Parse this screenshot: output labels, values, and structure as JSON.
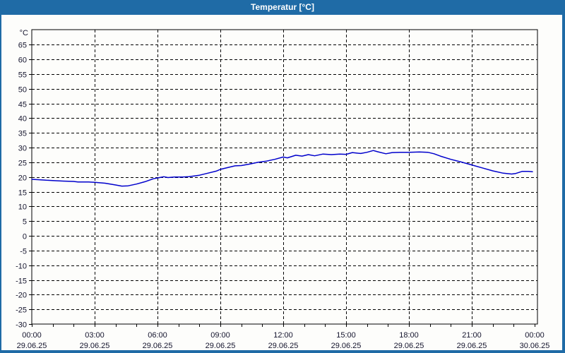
{
  "window": {
    "title": "Temperatur [°C]",
    "titlebar_color": "#1f6ba6",
    "frame_color": "#1f6ba6",
    "content_background": "#fdfdfb"
  },
  "chart_data": {
    "type": "line",
    "title": "Temperatur [°C]",
    "ylabel": "°C",
    "ylim": [
      -30,
      70.1
    ],
    "y_ticks": [
      -30,
      -25,
      -20,
      -15,
      -10,
      -5,
      0,
      5,
      10,
      15,
      20,
      25,
      30,
      35,
      40,
      45,
      50,
      55,
      60,
      65
    ],
    "grid": "dashed",
    "grid_color": "#000000",
    "axis_color": "#000000",
    "plot_background": "#fdfdfb",
    "x_axis": {
      "hours_span": 24,
      "minor_tick_every_hours": 1,
      "gridline_hours": [
        3,
        6,
        9,
        12,
        15,
        18,
        21
      ],
      "major_ticks": [
        {
          "hour": 0,
          "time": "00:00",
          "date": "29.06.25"
        },
        {
          "hour": 3,
          "time": "03:00",
          "date": "29.06.25"
        },
        {
          "hour": 6,
          "time": "06:00",
          "date": "29.06.25"
        },
        {
          "hour": 9,
          "time": "09:00",
          "date": "29.06.25"
        },
        {
          "hour": 12,
          "time": "12:00",
          "date": "29.06.25"
        },
        {
          "hour": 15,
          "time": "15:00",
          "date": "29.06.25"
        },
        {
          "hour": 18,
          "time": "18:00",
          "date": "29.06.25"
        },
        {
          "hour": 21,
          "time": "21:00",
          "date": "29.06.25"
        },
        {
          "hour": 24,
          "time": "00:00",
          "date": "30.06.25"
        }
      ]
    },
    "series": [
      {
        "name": "Temperatur",
        "color": "#0000cc",
        "points": [
          [
            0.0,
            19.2
          ],
          [
            0.3,
            19.1
          ],
          [
            0.7,
            18.9
          ],
          [
            1.0,
            18.8
          ],
          [
            1.5,
            18.6
          ],
          [
            2.0,
            18.5
          ],
          [
            2.2,
            18.3
          ],
          [
            2.7,
            18.3
          ],
          [
            3.0,
            18.2
          ],
          [
            3.5,
            17.9
          ],
          [
            4.0,
            17.3
          ],
          [
            4.3,
            16.9
          ],
          [
            4.6,
            17.0
          ],
          [
            5.0,
            17.6
          ],
          [
            5.4,
            18.4
          ],
          [
            5.8,
            19.4
          ],
          [
            6.1,
            19.8
          ],
          [
            6.3,
            20.1
          ],
          [
            6.5,
            19.8
          ],
          [
            6.8,
            20.0
          ],
          [
            7.2,
            20.0
          ],
          [
            7.5,
            20.1
          ],
          [
            8.0,
            20.6
          ],
          [
            8.4,
            21.3
          ],
          [
            8.8,
            22.0
          ],
          [
            9.0,
            22.6
          ],
          [
            9.4,
            23.3
          ],
          [
            9.7,
            23.8
          ],
          [
            10.0,
            23.9
          ],
          [
            10.4,
            24.4
          ],
          [
            10.8,
            25.0
          ],
          [
            11.2,
            25.4
          ],
          [
            11.6,
            26.0
          ],
          [
            12.0,
            26.8
          ],
          [
            12.2,
            26.5
          ],
          [
            12.6,
            27.4
          ],
          [
            12.9,
            27.1
          ],
          [
            13.2,
            27.6
          ],
          [
            13.5,
            27.2
          ],
          [
            13.9,
            27.8
          ],
          [
            14.3,
            27.6
          ],
          [
            14.7,
            27.8
          ],
          [
            15.0,
            27.7
          ],
          [
            15.3,
            28.3
          ],
          [
            15.7,
            28.0
          ],
          [
            16.0,
            28.4
          ],
          [
            16.3,
            29.0
          ],
          [
            16.5,
            28.6
          ],
          [
            16.9,
            27.9
          ],
          [
            17.2,
            28.3
          ],
          [
            17.6,
            28.4
          ],
          [
            18.0,
            28.4
          ],
          [
            18.5,
            28.5
          ],
          [
            18.9,
            28.4
          ],
          [
            19.2,
            27.9
          ],
          [
            19.5,
            27.1
          ],
          [
            20.0,
            26.0
          ],
          [
            20.5,
            25.1
          ],
          [
            21.0,
            24.1
          ],
          [
            21.5,
            23.1
          ],
          [
            22.0,
            22.1
          ],
          [
            22.5,
            21.3
          ],
          [
            22.9,
            21.0
          ],
          [
            23.1,
            21.2
          ],
          [
            23.4,
            21.9
          ],
          [
            23.7,
            21.9
          ],
          [
            23.9,
            21.8
          ]
        ]
      }
    ]
  }
}
